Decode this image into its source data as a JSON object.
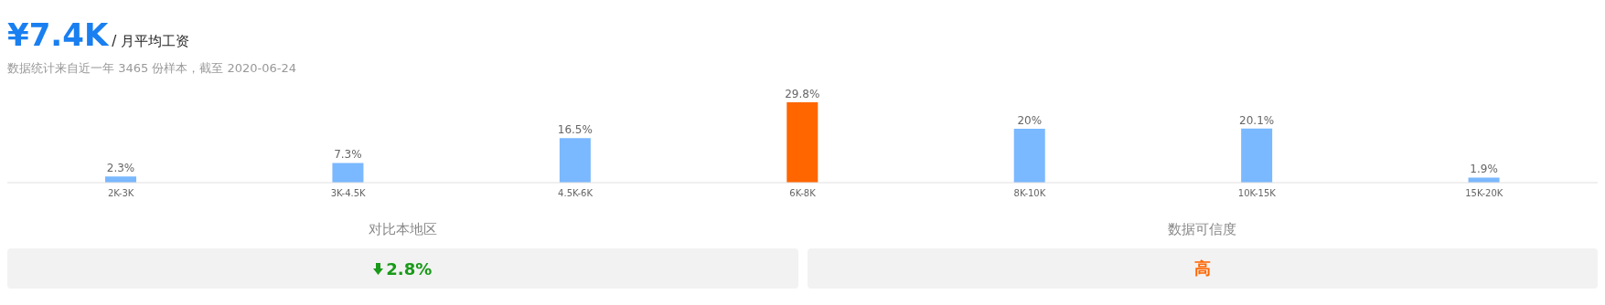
{
  "chart_data": {
    "type": "bar",
    "title": "¥7.4K",
    "subtitle": "/ 月平均工资",
    "annotations": [
      "数据统计来自近一年 3465 份样本，截至 2020-06-24",
      "对比本地区",
      "2.8%",
      "数据可信度",
      "高"
    ],
    "categories": [
      "2K-3K",
      "3K-4.5K",
      "4.5K-6K",
      "6K-8K",
      "8K-10K",
      "10K-15K",
      "15K-20K"
    ],
    "values": [
      2.3,
      7.3,
      16.5,
      29.8,
      20,
      20.1,
      1.9
    ],
    "value_labels": [
      "2.3%",
      "7.3%",
      "16.5%",
      "29.8%",
      "20%",
      "20.1%",
      "1.9%"
    ],
    "colors": [
      "#7ab8ff",
      "#7ab8ff",
      "#7ab8ff",
      "#ff6600",
      "#7ab8ff",
      "#7ab8ff",
      "#7ab8ff"
    ],
    "grid": false,
    "legend": false
  }
}
